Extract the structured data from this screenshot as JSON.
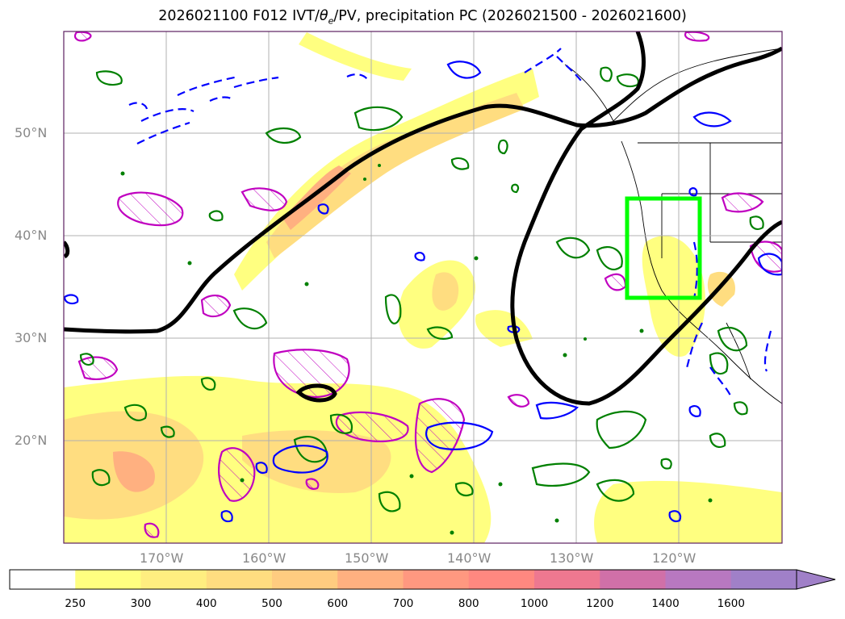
{
  "title_main": "2026021100 F012 IVT/",
  "title_theta": "θ",
  "title_theta_sub": "e",
  "title_rest": "/PV, precipitation PC (2026021500 - 2026021600)",
  "lat_labels": [
    "50°N",
    "40°N",
    "30°N",
    "20°N"
  ],
  "lon_labels": [
    "170°W",
    "160°W",
    "150°W",
    "140°W",
    "130°W",
    "120°W"
  ],
  "colorbar": {
    "ticks": [
      "250",
      "300",
      "400",
      "500",
      "600",
      "700",
      "800",
      "1000",
      "1200",
      "1400",
      "1600"
    ],
    "colors": [
      "#ffffff",
      "#ffff80",
      "#ffee80",
      "#ffdd80",
      "#ffcc80",
      "#ffb080",
      "#ff9880",
      "#ff8880",
      "#ee7890",
      "#d070a8",
      "#b878c0",
      "#a080c8"
    ],
    "extend": "max"
  },
  "layers": {
    "ivt_fill": "IVT shading",
    "theta_e": "black contour",
    "pv_green": "#008000",
    "pv_blue": "#0000ff",
    "pv_magenta": "#c000c0",
    "box_color": "#00ff00"
  }
}
